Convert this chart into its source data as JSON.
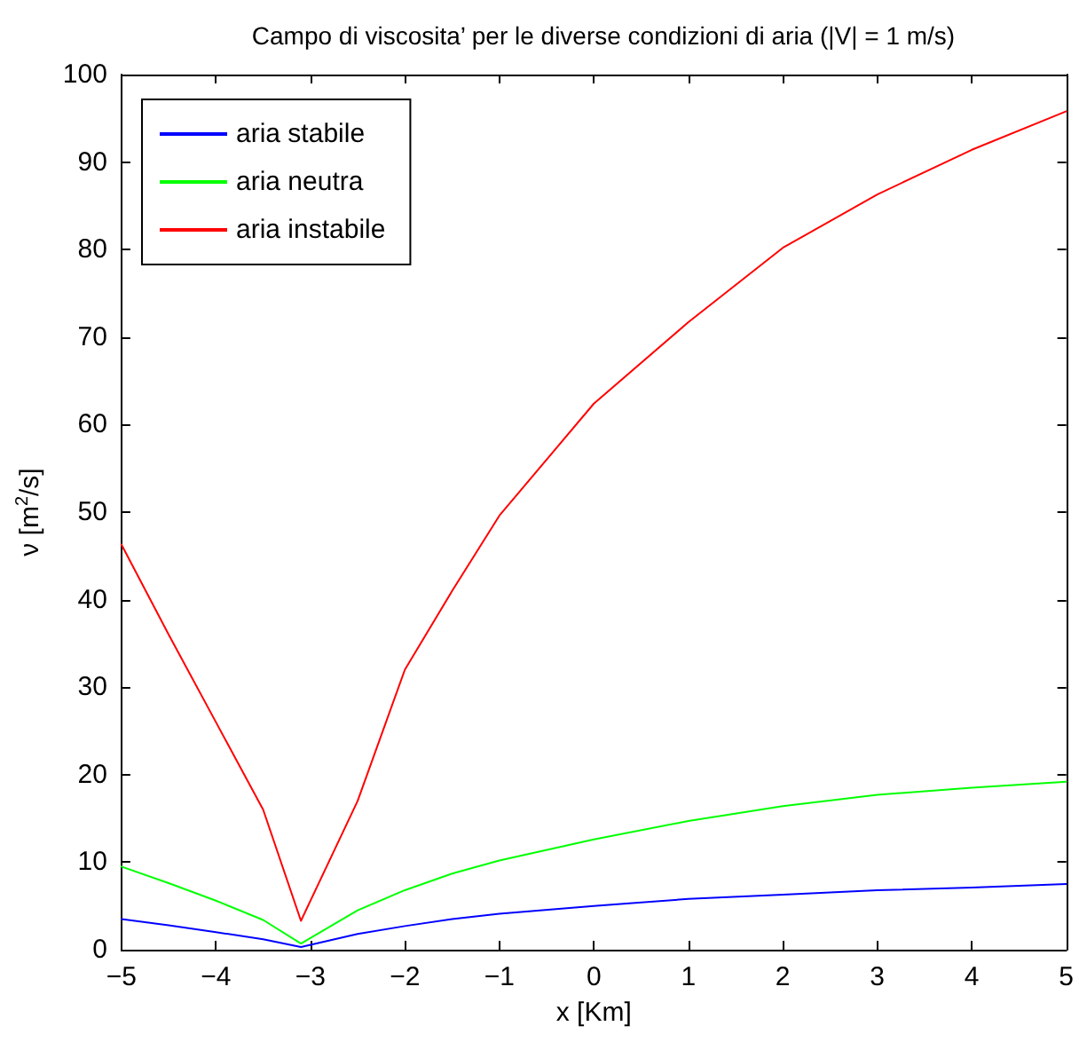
{
  "chart_data": {
    "type": "line",
    "title": "Campo di viscosita’ per le diverse condizioni di aria (|V| = 1 m/s)",
    "xlabel": "x [Km]",
    "ylabel": "ν [m$^{2}$/s]",
    "x": [
      -5,
      -4.5,
      -4,
      -3.5,
      -3.1,
      -2.5,
      -2,
      -1.5,
      -1,
      0,
      1,
      2,
      3,
      4,
      5
    ],
    "series": [
      {
        "name": "aria stabile",
        "color": "#0000ff",
        "values": [
          3.5,
          2.8,
          2.0,
          1.2,
          0.3,
          1.8,
          2.7,
          3.5,
          4.1,
          5.0,
          5.8,
          6.3,
          6.8,
          7.1,
          7.5
        ]
      },
      {
        "name": "aria neutra",
        "color": "#00ff00",
        "values": [
          9.5,
          7.6,
          5.6,
          3.4,
          0.7,
          4.5,
          6.8,
          8.7,
          10.2,
          12.6,
          14.7,
          16.4,
          17.7,
          18.5,
          19.2
        ]
      },
      {
        "name": "aria instabile",
        "color": "#ff0000",
        "values": [
          46.3,
          36,
          26,
          16,
          3.3,
          17,
          32,
          41,
          49.6,
          62.4,
          71.7,
          80.2,
          86.3,
          91.4,
          95.8
        ]
      }
    ],
    "xlim": [
      -5,
      5
    ],
    "xticks": [
      -5,
      -4,
      -3,
      -2,
      -1,
      0,
      1,
      2,
      3,
      4,
      5
    ],
    "ylim": [
      0,
      100
    ],
    "yticks": [
      0,
      10,
      20,
      30,
      40,
      50,
      60,
      70,
      80,
      90,
      100
    ],
    "grid": false,
    "legend": "top left",
    "marker": "none",
    "line_style": "solid"
  }
}
